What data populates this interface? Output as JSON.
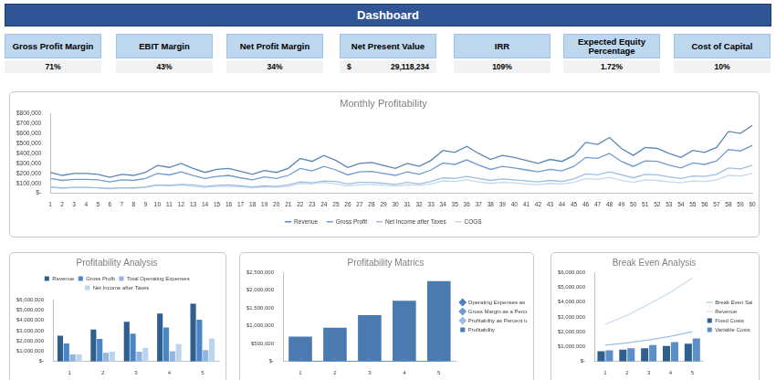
{
  "header": "Dashboard",
  "kpis": [
    {
      "label": "Gross Profit Margin",
      "value": "71%"
    },
    {
      "label": "EBIT Margin",
      "value": "43%"
    },
    {
      "label": "Net Profit Margin",
      "value": "34%"
    },
    {
      "label": "Net Present Value",
      "prefix": "$",
      "value": "29,118,234"
    },
    {
      "label": "IRR",
      "value": "109%"
    },
    {
      "label": "Expected Equity Percentage",
      "value": "1.72%"
    },
    {
      "label": "Cost of Capital",
      "value": "10%"
    }
  ],
  "chart_data": [
    {
      "type": "line",
      "title": "Monthly Profitability",
      "categories": [
        "1",
        "2",
        "3",
        "4",
        "5",
        "6",
        "7",
        "8",
        "9",
        "10",
        "11",
        "12",
        "13",
        "14",
        "15",
        "16",
        "17",
        "18",
        "19",
        "20",
        "21",
        "22",
        "23",
        "24",
        "25",
        "26",
        "27",
        "28",
        "29",
        "30",
        "31",
        "32",
        "33",
        "34",
        "35",
        "36",
        "37",
        "38",
        "39",
        "40",
        "41",
        "42",
        "43",
        "44",
        "45",
        "46",
        "47",
        "48",
        "49",
        "50",
        "51",
        "52",
        "53",
        "54",
        "55",
        "56",
        "57",
        "58",
        "59",
        "60"
      ],
      "series": [
        {
          "name": "Revenue",
          "color": "#5b87b5",
          "marker": "none",
          "values": [
            210000,
            180000,
            200000,
            200000,
            190000,
            160000,
            190000,
            180000,
            210000,
            280000,
            260000,
            300000,
            250000,
            210000,
            240000,
            250000,
            220000,
            190000,
            230000,
            210000,
            250000,
            350000,
            320000,
            380000,
            330000,
            260000,
            300000,
            310000,
            280000,
            250000,
            300000,
            270000,
            330000,
            430000,
            410000,
            470000,
            400000,
            340000,
            380000,
            360000,
            330000,
            300000,
            340000,
            320000,
            380000,
            510000,
            490000,
            560000,
            450000,
            380000,
            460000,
            450000,
            400000,
            360000,
            430000,
            410000,
            460000,
            620000,
            600000,
            680000
          ]
        },
        {
          "name": "Gross Profit",
          "color": "#6f9bd1",
          "marker": "none",
          "values": [
            150000,
            130000,
            140000,
            140000,
            135000,
            115000,
            135000,
            130000,
            150000,
            200000,
            185000,
            215000,
            180000,
            150000,
            170000,
            180000,
            155000,
            135000,
            165000,
            150000,
            180000,
            250000,
            225000,
            270000,
            235000,
            185000,
            215000,
            220000,
            200000,
            180000,
            215000,
            190000,
            235000,
            305000,
            290000,
            335000,
            285000,
            240000,
            270000,
            255000,
            235000,
            215000,
            240000,
            225000,
            270000,
            360000,
            350000,
            400000,
            320000,
            270000,
            325000,
            320000,
            285000,
            255000,
            305000,
            290000,
            325000,
            440000,
            425000,
            480000
          ]
        },
        {
          "name": "Net Income after Taxes",
          "color": "#9dbde3",
          "marker": "none",
          "values": [
            65000,
            55000,
            60000,
            60000,
            55000,
            50000,
            55000,
            55000,
            65000,
            85000,
            80000,
            90000,
            85000,
            70000,
            80000,
            85000,
            75000,
            65000,
            75000,
            70000,
            85000,
            115000,
            105000,
            125000,
            120000,
            95000,
            110000,
            110000,
            100000,
            90000,
            110000,
            95000,
            120000,
            155000,
            150000,
            170000,
            150000,
            130000,
            145000,
            135000,
            125000,
            115000,
            130000,
            120000,
            145000,
            195000,
            185000,
            215000,
            185000,
            155000,
            190000,
            185000,
            165000,
            150000,
            175000,
            170000,
            190000,
            255000,
            245000,
            280000
          ]
        },
        {
          "name": "COGS",
          "color": "#c5d9ee",
          "marker": "none",
          "values": [
            60000,
            50000,
            60000,
            60000,
            55000,
            45000,
            55000,
            50000,
            60000,
            80000,
            75000,
            85000,
            70000,
            60000,
            70000,
            70000,
            65000,
            55000,
            65000,
            60000,
            70000,
            100000,
            95000,
            110000,
            95000,
            75000,
            85000,
            90000,
            80000,
            75000,
            85000,
            80000,
            95000,
            125000,
            120000,
            135000,
            115000,
            100000,
            110000,
            105000,
            95000,
            85000,
            100000,
            95000,
            110000,
            150000,
            140000,
            160000,
            130000,
            110000,
            135000,
            130000,
            115000,
            105000,
            125000,
            120000,
            135000,
            180000,
            175000,
            200000
          ]
        }
      ],
      "ylim": [
        0,
        800000
      ],
      "yticks": [
        {
          "value": 0,
          "label": "$-"
        },
        {
          "value": 100000,
          "label": "$100,000"
        },
        {
          "value": 200000,
          "label": "$200,000"
        },
        {
          "value": 300000,
          "label": "$300,000"
        },
        {
          "value": 400000,
          "label": "$400,000"
        },
        {
          "value": 500000,
          "label": "$500,000"
        },
        {
          "value": 600000,
          "label": "$600,000"
        },
        {
          "value": 700000,
          "label": "$700,000"
        },
        {
          "value": 800000,
          "label": "$800,000"
        }
      ],
      "grid": false,
      "legend": "bottom"
    },
    {
      "type": "bar",
      "title": "Profitability Analysis",
      "categories": [
        "1",
        "2",
        "3",
        "4",
        "5"
      ],
      "series": [
        {
          "name": "Revenue",
          "color": "#2e5f8f",
          "values": [
            2500000,
            3100000,
            3850000,
            4650000,
            5600000
          ]
        },
        {
          "name": "Gross Profit",
          "color": "#4a86c5",
          "values": [
            1750000,
            2200000,
            2700000,
            3300000,
            4050000
          ]
        },
        {
          "name": "Total Operating Expenses",
          "color": "#8fb5e0",
          "values": [
            700000,
            850000,
            950000,
            1000000,
            1100000
          ]
        },
        {
          "name": "Net Income after Taxes",
          "color": "#bcd4ee",
          "values": [
            700000,
            950000,
            1300000,
            1700000,
            2250000
          ]
        }
      ],
      "ylim": [
        0,
        6000000
      ],
      "yticks": [
        {
          "value": 0,
          "label": "$-"
        },
        {
          "value": 1000000,
          "label": "$1,000,000"
        },
        {
          "value": 2000000,
          "label": "$2,000,000"
        },
        {
          "value": 3000000,
          "label": "$3,000,000"
        },
        {
          "value": 4000000,
          "label": "$4,000,000"
        },
        {
          "value": 5000000,
          "label": "$5,000,000"
        },
        {
          "value": 6000000,
          "label": "$6,000,000"
        }
      ],
      "grid": false,
      "legend": "top"
    },
    {
      "type": "bar",
      "title": "Profitability Matrics",
      "categories": [
        "1",
        "2",
        "3",
        "4",
        "5"
      ],
      "series": [
        {
          "name": "Profitability",
          "color": "#4a7ab0",
          "values": [
            700000,
            950000,
            1300000,
            1700000,
            2250000
          ]
        },
        {
          "name": "Operating Expenses as a Percent of Sales",
          "type": "line",
          "marker": "diamond",
          "color": "#4f81bd",
          "values": [
            0.28,
            0.27,
            0.25,
            0.22,
            0.2
          ]
        },
        {
          "name": "Gross Margin as a Percent of Sales",
          "type": "line",
          "marker": "diamond",
          "color": "#6f9bd1",
          "values": [
            0.7,
            0.71,
            0.71,
            0.71,
            0.72
          ]
        },
        {
          "name": "Profitability as Percent to Sales",
          "type": "line",
          "marker": "diamond",
          "color": "#9dbde3",
          "values": [
            0.28,
            0.31,
            0.34,
            0.37,
            0.4
          ]
        }
      ],
      "ylim": [
        0,
        2500000
      ],
      "yticks": [
        {
          "value": 0,
          "label": "$-"
        },
        {
          "value": 500000,
          "label": "$500,000"
        },
        {
          "value": 1000000,
          "label": "$1,000,000"
        },
        {
          "value": 1500000,
          "label": "$1,500,000"
        },
        {
          "value": 2000000,
          "label": "$2,000,000"
        },
        {
          "value": 2500000,
          "label": "$2,500,000"
        }
      ],
      "grid": false,
      "legend": "right"
    },
    {
      "type": "bar",
      "title": "Break Even Analysis",
      "categories": [
        "1",
        "2",
        "3",
        "4",
        "5"
      ],
      "series": [
        {
          "name": "Fixed Costs",
          "color": "#2e5f8f",
          "values": [
            700000,
            800000,
            900000,
            1050000,
            1200000
          ]
        },
        {
          "name": "Variable Costs",
          "color": "#5b8fc7",
          "values": [
            750000,
            900000,
            1100000,
            1300000,
            1550000
          ]
        },
        {
          "name": "Break Even Sales",
          "type": "line",
          "marker": "none",
          "color": "#9dbde3",
          "values": [
            1100000,
            1250000,
            1450000,
            1700000,
            2000000
          ]
        },
        {
          "name": "Revenue",
          "type": "line",
          "marker": "none",
          "color": "#c5d9ee",
          "values": [
            2500000,
            3100000,
            3850000,
            4650000,
            5600000
          ]
        }
      ],
      "ylim": [
        0,
        6000000
      ],
      "yticks": [
        {
          "value": 0,
          "label": "$-"
        },
        {
          "value": 1000000,
          "label": "$1,000,000"
        },
        {
          "value": 2000000,
          "label": "$2,000,000"
        },
        {
          "value": 3000000,
          "label": "$3,000,000"
        },
        {
          "value": 4000000,
          "label": "$4,000,000"
        },
        {
          "value": 5000000,
          "label": "$5,000,000"
        },
        {
          "value": 6000000,
          "label": "$6,000,000"
        }
      ],
      "grid": false,
      "legend": "right"
    }
  ]
}
